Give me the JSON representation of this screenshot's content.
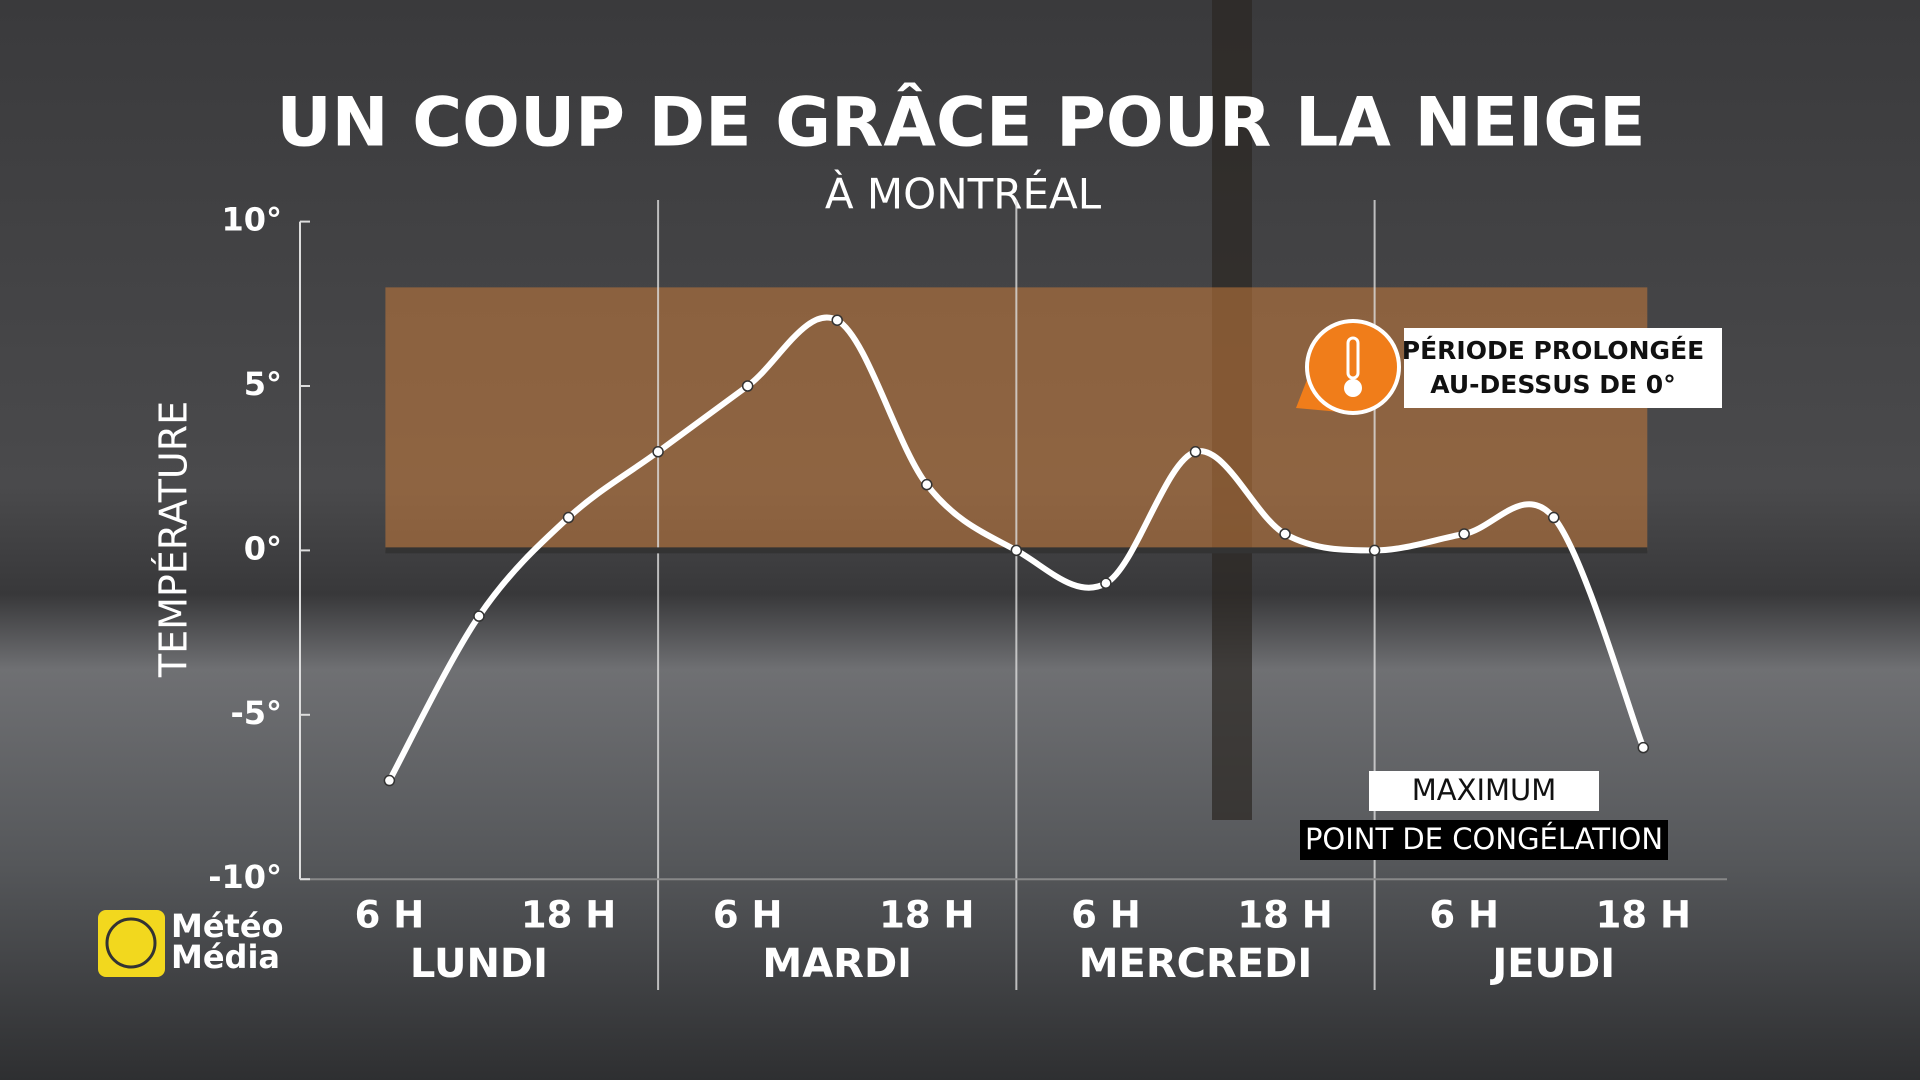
{
  "chart_data": {
    "type": "line",
    "title": "UN COUP DE GRÂCE POUR LA NEIGE",
    "subtitle": "À MONTRÉAL",
    "y_label": "TEMPÉRATURE",
    "categories": [
      "6 H",
      null,
      "18 H",
      null,
      "6 H",
      null,
      "18 H",
      null,
      "6 H",
      null,
      "18 H",
      null,
      "6 H",
      null,
      "18 H"
    ],
    "days": [
      {
        "label": "LUNDI",
        "index": 1
      },
      {
        "label": "MARDI",
        "index": 5
      },
      {
        "label": "MERCREDI",
        "index": 9
      },
      {
        "label": "JEUDI",
        "index": 13
      }
    ],
    "day_separators": [
      3,
      7,
      11
    ],
    "series": [
      {
        "name": "MAXIMUM",
        "color": "#ffffff",
        "values": [
          -7,
          -2,
          1,
          3,
          5,
          7,
          2,
          0,
          -1,
          3,
          0.5,
          0,
          0.5,
          1,
          -6
        ]
      }
    ],
    "ylim": [
      -10,
      10
    ],
    "yticks": [
      {
        "value": 10,
        "label": "10°"
      },
      {
        "value": 5,
        "label": "5°"
      },
      {
        "value": 0,
        "label": "0°"
      },
      {
        "value": -5,
        "label": "-5°"
      },
      {
        "value": -10,
        "label": "-10°"
      }
    ],
    "freezing_line": {
      "name": "POINT DE CONGÉLATION",
      "value": 0,
      "color": "#333333"
    },
    "highlight_band": {
      "from": 0,
      "to": 8,
      "color": "#c77a3a"
    },
    "annotation": [
      "PÉRIODE PROLONGÉE",
      "AU-DESSUS DE 0°"
    ],
    "logo": [
      "Météo",
      "Média"
    ]
  }
}
